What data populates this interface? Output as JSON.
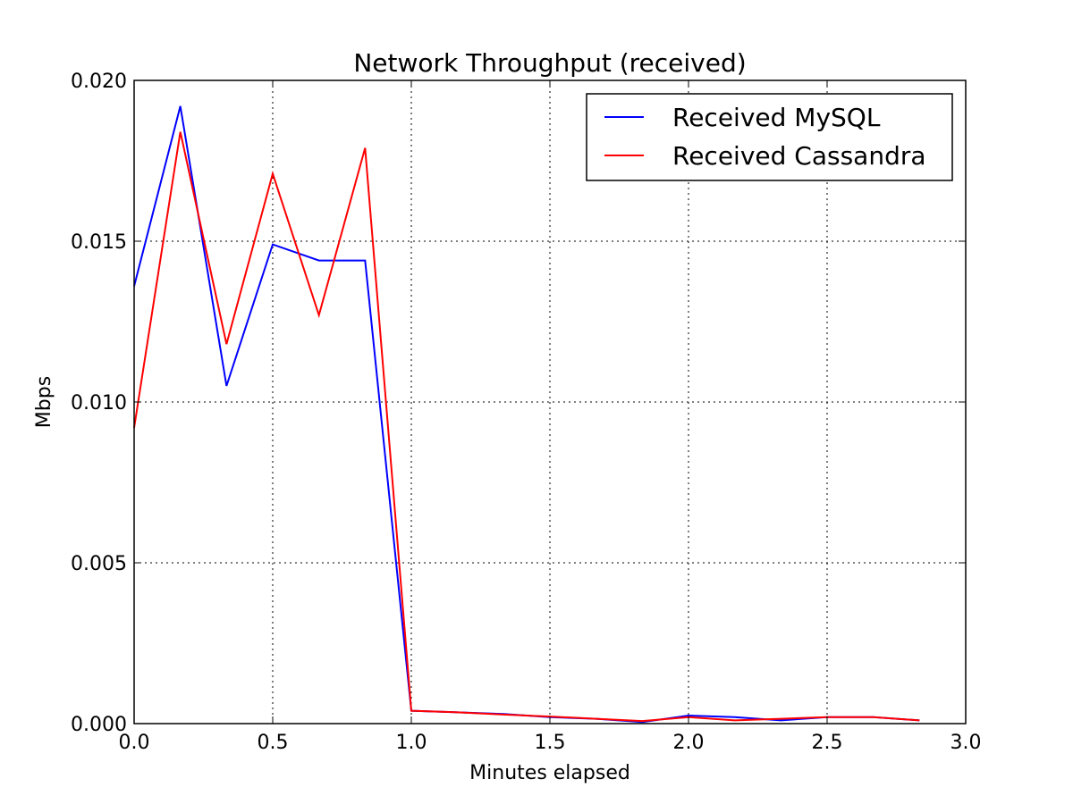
{
  "chart_data": {
    "type": "line",
    "title": "Network Throughput (received)",
    "xlabel": "Minutes elapsed",
    "ylabel": "Mbps",
    "xlim": [
      0.0,
      3.0
    ],
    "ylim": [
      0.0,
      0.02
    ],
    "xticks": [
      "0.0",
      "0.5",
      "1.0",
      "1.5",
      "2.0",
      "2.5",
      "3.0"
    ],
    "yticks": [
      "0.000",
      "0.005",
      "0.010",
      "0.015",
      "0.020"
    ],
    "grid": true,
    "legend_position": "top-right",
    "x": [
      0.0,
      0.1667,
      0.3333,
      0.5,
      0.6667,
      0.8333,
      1.0,
      1.1667,
      1.3333,
      1.5,
      1.6667,
      1.8333,
      2.0,
      2.1667,
      2.3333,
      2.5,
      2.6667,
      2.8333
    ],
    "series": [
      {
        "name": "Received MySQL",
        "color": "#0000ff",
        "values": [
          0.0136,
          0.0192,
          0.0105,
          0.0149,
          0.0144,
          0.0144,
          0.0004,
          0.00035,
          0.0003,
          0.0002,
          0.00015,
          5e-05,
          0.00025,
          0.0002,
          0.0001,
          0.0002,
          0.0002,
          0.0001
        ]
      },
      {
        "name": "Received Cassandra",
        "color": "#ff0000",
        "values": [
          0.0092,
          0.0184,
          0.0118,
          0.0171,
          0.0127,
          0.0179,
          0.0004,
          0.00035,
          0.00028,
          0.00022,
          0.00015,
          8e-05,
          0.0002,
          0.0001,
          0.00015,
          0.0002,
          0.0002,
          0.0001
        ]
      }
    ]
  }
}
